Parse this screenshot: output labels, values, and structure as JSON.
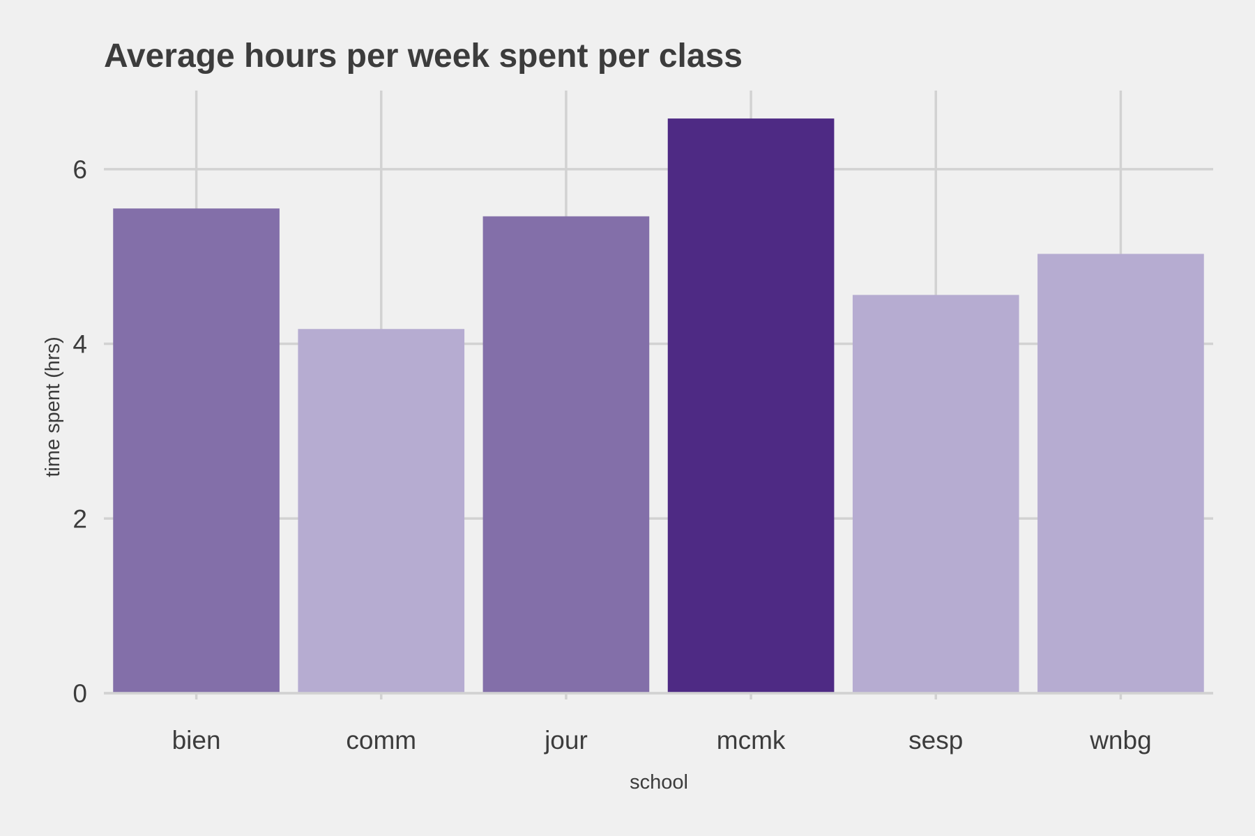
{
  "chart_data": {
    "type": "bar",
    "title": "Average hours per week spent per class",
    "xlabel": "school",
    "ylabel": "time spent (hrs)",
    "categories": [
      "bien",
      "comm",
      "jour",
      "mcmk",
      "sesp",
      "wnbg"
    ],
    "values": [
      5.55,
      4.17,
      5.46,
      6.58,
      4.56,
      5.03
    ],
    "bar_colors": [
      "#836fa9",
      "#b6acd1",
      "#836fa9",
      "#4e2a84",
      "#b6acd1",
      "#b6acd1"
    ],
    "ylim": [
      0,
      6.9
    ],
    "yticks": [
      0,
      2,
      4,
      6
    ],
    "ytick_labels": [
      "0",
      "2",
      "4",
      "6"
    ],
    "grid": true,
    "legend": "none",
    "background": "#f0f0f0",
    "grid_color": "#d2d2d2",
    "text_color": "#3c3c3c"
  }
}
